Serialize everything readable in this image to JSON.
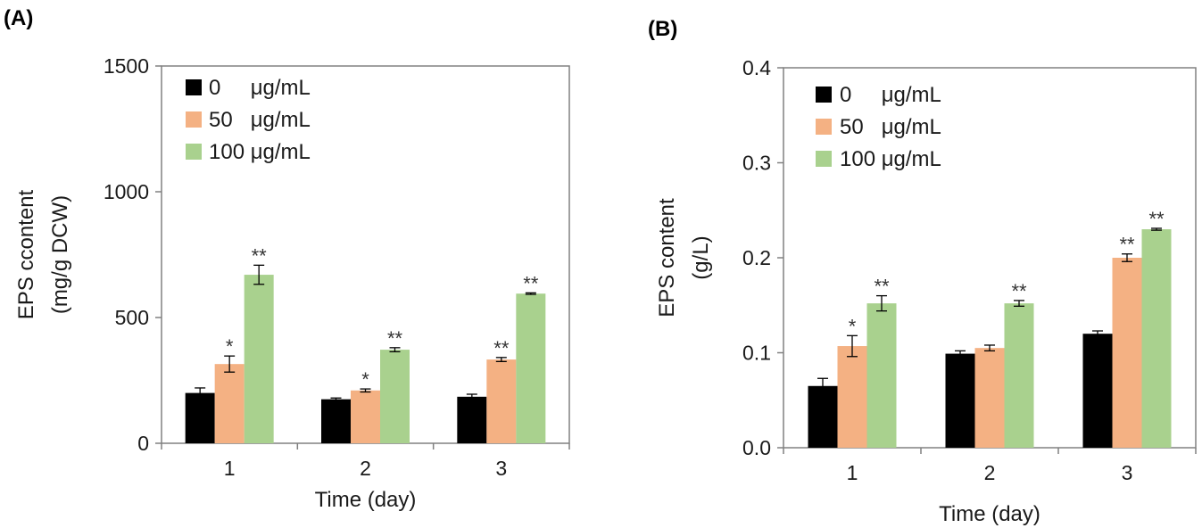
{
  "chart_data": [
    {
      "panel": "(A)",
      "type": "bar",
      "categories": [
        "1",
        "2",
        "3"
      ],
      "xlabel": "Time (day)",
      "ylabel": [
        "EPS ccontent",
        "(mg/g DCW)"
      ],
      "ylim": [
        0,
        1500
      ],
      "yticks": [
        "0",
        "500",
        "1000",
        "1500"
      ],
      "legend_position": "top-left",
      "grid": false,
      "series": [
        {
          "name": "0     μg/mL",
          "color": "#000000",
          "values": [
            200,
            175,
            185
          ],
          "errors": [
            20,
            5,
            10
          ],
          "significance": [
            "",
            "",
            ""
          ]
        },
        {
          "name": "50   μg/mL",
          "color": "#F4B183",
          "values": [
            315,
            210,
            333
          ],
          "errors": [
            32,
            6,
            8
          ],
          "significance": [
            "*",
            "*",
            "**"
          ]
        },
        {
          "name": "100 μg/mL",
          "color": "#A9D18E",
          "values": [
            670,
            372,
            595
          ],
          "errors": [
            38,
            8,
            3
          ],
          "significance": [
            "**",
            "**",
            "**"
          ]
        }
      ]
    },
    {
      "panel": "(B)",
      "type": "bar",
      "categories": [
        "1",
        "2",
        "3"
      ],
      "xlabel": "Time (day)",
      "ylabel": [
        "EPS content",
        "(g/L)"
      ],
      "ylim": [
        0,
        0.4
      ],
      "yticks": [
        "0.0",
        "0.1",
        "0.2",
        "0.3",
        "0.4"
      ],
      "legend_position": "top-left",
      "grid": false,
      "series": [
        {
          "name": "0     μg/mL",
          "color": "#000000",
          "values": [
            0.065,
            0.099,
            0.12
          ],
          "errors": [
            0.008,
            0.003,
            0.003
          ],
          "significance": [
            "",
            "",
            ""
          ]
        },
        {
          "name": "50   μg/mL",
          "color": "#F4B183",
          "values": [
            0.107,
            0.105,
            0.2
          ],
          "errors": [
            0.011,
            0.003,
            0.004
          ],
          "significance": [
            "*",
            "",
            "**"
          ]
        },
        {
          "name": "100 μg/mL",
          "color": "#A9D18E",
          "values": [
            0.152,
            0.152,
            0.23
          ],
          "errors": [
            0.008,
            0.003,
            0.001
          ],
          "significance": [
            "**",
            "**",
            "**"
          ]
        }
      ]
    }
  ]
}
